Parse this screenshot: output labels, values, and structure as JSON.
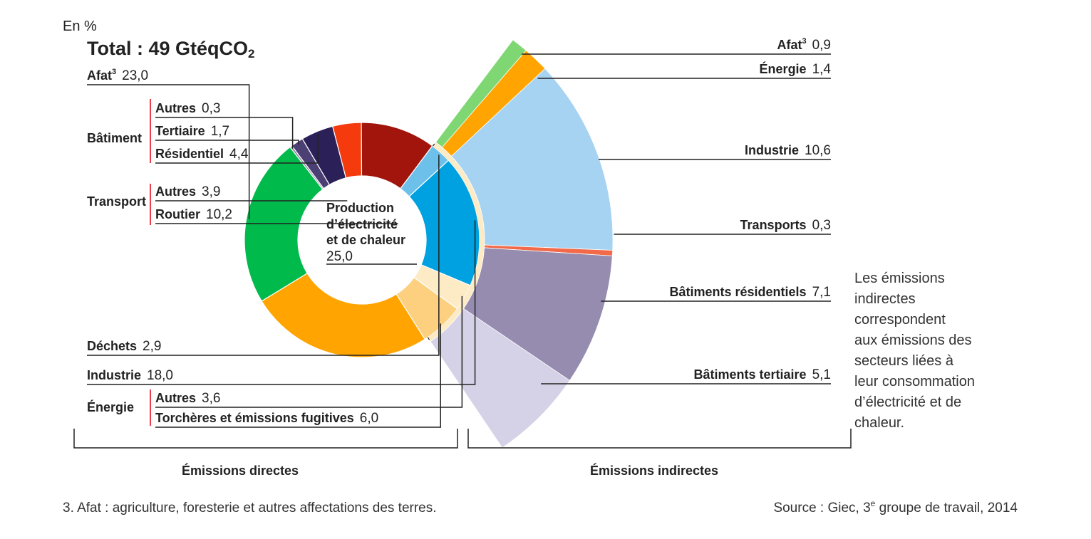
{
  "header": {
    "unit": "En %",
    "total": "Total : 49 GtéqCO",
    "total_sub": "2"
  },
  "chart_data": {
    "type": "pie",
    "title": "Total : 49 GtéqCO2",
    "unit": "En %",
    "direct": [
      {
        "group": "",
        "label": "Afat",
        "sup": "3",
        "value": 23.0,
        "value_text": "23,0",
        "color": "#00BA4B"
      },
      {
        "group": "Bâtiment",
        "label": "Autres",
        "value": 0.3,
        "value_text": "0,3",
        "color": "#9187A8"
      },
      {
        "group": "Bâtiment",
        "label": "Tertiaire",
        "value": 1.7,
        "value_text": "1,7",
        "color": "#4B3F73"
      },
      {
        "group": "Bâtiment",
        "label": "Résidentiel",
        "value": 4.4,
        "value_text": "4,4",
        "color": "#2B2058"
      },
      {
        "group": "Transport",
        "label": "Autres",
        "value": 3.9,
        "value_text": "3,9",
        "color": "#F53B0D"
      },
      {
        "group": "Transport",
        "label": "Routier",
        "value": 10.2,
        "value_text": "10,2",
        "color": "#A1150C"
      },
      {
        "group": "",
        "label": "Déchets",
        "value": 2.9,
        "value_text": "2,9",
        "color": "#6DC0EA"
      },
      {
        "group": "",
        "label": "Industrie",
        "value": 18.0,
        "value_text": "18,0",
        "color": "#00A1E0"
      },
      {
        "group": "Énergie",
        "label": "Autres",
        "value": 3.6,
        "value_text": "3,6",
        "color": "#FDEBC6"
      },
      {
        "group": "Énergie",
        "label": "Torchères et émissions fugitives",
        "value": 6.0,
        "value_text": "6,0",
        "color": "#FCD07E"
      },
      {
        "group": "",
        "label": "Production d’électricité et de chaleur",
        "value": 25.0,
        "value_text": "25,0",
        "color": "#FFA400"
      }
    ],
    "indirect": [
      {
        "label": "Afat",
        "sup": "3",
        "value": 0.9,
        "value_text": "0,9",
        "color": "#7FD773"
      },
      {
        "label": "Énergie",
        "value": 1.4,
        "value_text": "1,4",
        "color": "#FFA400"
      },
      {
        "label": "Industrie",
        "value": 10.6,
        "value_text": "10,6",
        "color": "#A6D3F1"
      },
      {
        "label": "Transports",
        "value": 0.3,
        "value_text": "0,3",
        "color": "#F26A4A"
      },
      {
        "label": "Bâtiments résidentiels",
        "value": 7.1,
        "value_text": "7,1",
        "color": "#968CAF"
      },
      {
        "label": "Bâtiments tertiaire",
        "value": 5.1,
        "value_text": "5,1",
        "color": "#D5D1E6"
      }
    ],
    "groups": {
      "batiment": "Bâtiment",
      "transport": "Transport",
      "energie": "Énergie"
    },
    "center": {
      "line1": "Production",
      "line2": "d’électricité",
      "line3": "et de chaleur",
      "value": "25,0"
    },
    "brackets": {
      "direct": "Émissions directes",
      "indirect": "Émissions indirectes"
    },
    "note": [
      "Les émissions",
      "indirectes",
      "correspondent",
      "aux émissions des",
      "secteurs liées à",
      "leur consommation",
      "d’électricité et de",
      "chaleur."
    ]
  },
  "footer": {
    "footnote": "3. Afat : agriculture, foresterie et autres affectations des terres.",
    "source_prefix": "Source : Giec, 3",
    "source_sup": "e",
    "source_suffix": " groupe de travail, 2014"
  }
}
